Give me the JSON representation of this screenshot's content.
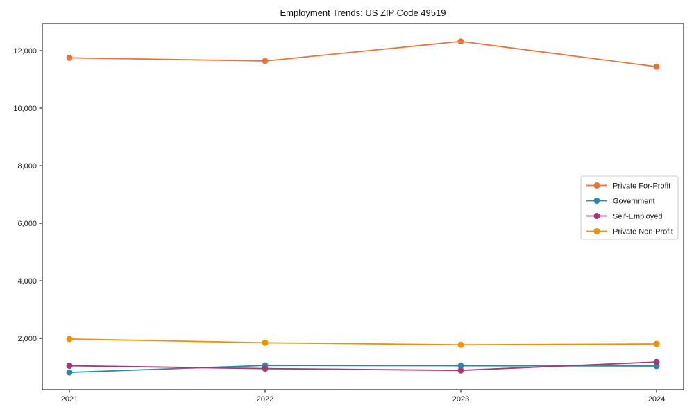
{
  "chart_data": {
    "type": "line",
    "title": "Employment Trends: US ZIP Code 49519",
    "xlabel": "",
    "ylabel": "",
    "categories": [
      "2021",
      "2022",
      "2023",
      "2024"
    ],
    "y_ticks": [
      2000,
      4000,
      6000,
      8000,
      10000,
      12000
    ],
    "y_tick_labels": [
      "2,000",
      "4,000",
      "6,000",
      "8,000",
      "10,000",
      "12,000"
    ],
    "ylim": [
      220,
      12940
    ],
    "grid": false,
    "legend_position": "center-right",
    "series": [
      {
        "name": "Private For-Profit",
        "color": "#E8743B",
        "values": [
          11750,
          11640,
          12320,
          11440
        ]
      },
      {
        "name": "Government",
        "color": "#2E86AB",
        "values": [
          820,
          1060,
          1050,
          1040
        ]
      },
      {
        "name": "Self-Employed",
        "color": "#A23B72",
        "values": [
          1050,
          950,
          890,
          1180
        ]
      },
      {
        "name": "Private Non-Profit",
        "color": "#F18F01",
        "values": [
          1980,
          1850,
          1780,
          1810
        ]
      }
    ],
    "colors": {
      "spine": "#000000",
      "tick_text": "#1a1a1a",
      "legend_border": "#cccccc",
      "legend_background": "#ffffff"
    }
  }
}
